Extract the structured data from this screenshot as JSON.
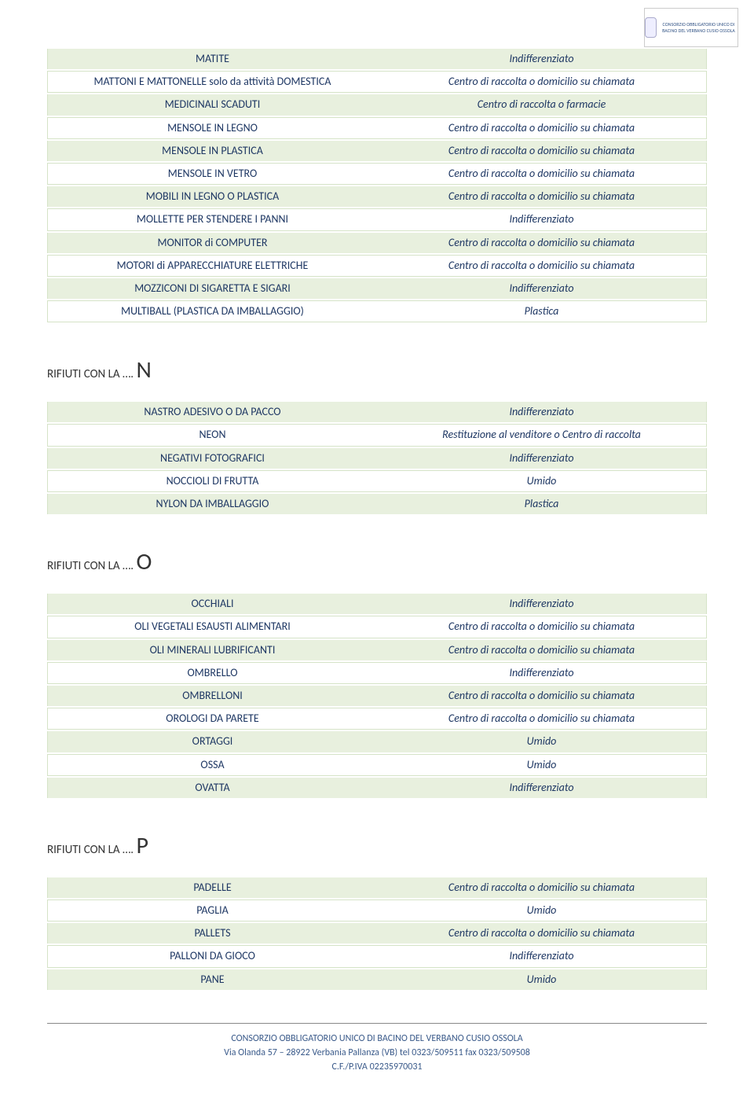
{
  "colors": {
    "row_even_bg": "#e8f0de",
    "row_odd_bg": "#ffffff",
    "row_border": "#d5e3c7",
    "item_text": "#1f3864",
    "disp_text": "#1f3864",
    "heading_text": "#333333",
    "footer_text": "#3a5a8a"
  },
  "logo": {
    "text": "CONSORZIO OBBLIGATORIO UNICO DI BACINO DEL VERBANO CUSIO OSSOLA"
  },
  "tables": {
    "m": [
      {
        "item": "MATITE",
        "disp": "Indifferenziato"
      },
      {
        "item": "MATTONI E MATTONELLE solo da attività DOMESTICA",
        "disp": "Centro di raccolta o domicilio su chiamata"
      },
      {
        "item": "MEDICINALI SCADUTI",
        "disp": "Centro di raccolta o farmacie"
      },
      {
        "item": "MENSOLE IN LEGNO",
        "disp": "Centro di raccolta o domicilio su chiamata"
      },
      {
        "item": "MENSOLE IN PLASTICA",
        "disp": "Centro di raccolta o domicilio su chiamata"
      },
      {
        "item": "MENSOLE IN VETRO",
        "disp": "Centro di raccolta o domicilio su chiamata"
      },
      {
        "item": "MOBILI IN LEGNO O PLASTICA",
        "disp": "Centro di raccolta o domicilio su chiamata"
      },
      {
        "item": "MOLLETTE PER STENDERE I PANNI",
        "disp": "Indifferenziato"
      },
      {
        "item": "MONITOR di COMPUTER",
        "disp": "Centro di raccolta o domicilio su chiamata"
      },
      {
        "item": "MOTORI di APPARECCHIATURE ELETTRICHE",
        "disp": "Centro di raccolta o domicilio su chiamata"
      },
      {
        "item": "MOZZICONI DI SIGARETTA E SIGARI",
        "disp": "Indifferenziato"
      },
      {
        "item": "MULTIBALL (PLASTICA DA IMBALLAGGIO)",
        "disp": "Plastica"
      }
    ],
    "n": [
      {
        "item": "NASTRO ADESIVO O DA PACCO",
        "disp": "Indifferenziato"
      },
      {
        "item": "NEON",
        "disp": "Restituzione al venditore o Centro di raccolta"
      },
      {
        "item": "NEGATIVI FOTOGRAFICI",
        "disp": "Indifferenziato"
      },
      {
        "item": "NOCCIOLI DI FRUTTA",
        "disp": "Umido"
      },
      {
        "item": "NYLON DA IMBALLAGGIO",
        "disp": "Plastica"
      }
    ],
    "o": [
      {
        "item": "OCCHIALI",
        "disp": "Indifferenziato"
      },
      {
        "item": "OLI VEGETALI ESAUSTI ALIMENTARI",
        "disp": "Centro di raccolta o domicilio su chiamata"
      },
      {
        "item": "OLI MINERALI LUBRIFICANTI",
        "disp": "Centro di raccolta o domicilio su chiamata"
      },
      {
        "item": "OMBRELLO",
        "disp": "Indifferenziato"
      },
      {
        "item": "OMBRELLONI",
        "disp": "Centro di raccolta o domicilio su chiamata"
      },
      {
        "item": "OROLOGI DA PARETE",
        "disp": "Centro di raccolta o domicilio su chiamata"
      },
      {
        "item": "ORTAGGI",
        "disp": "Umido"
      },
      {
        "item": "OSSA",
        "disp": "Umido"
      },
      {
        "item": "OVATTA",
        "disp": "Indifferenziato"
      }
    ],
    "p": [
      {
        "item": "PADELLE",
        "disp": "Centro di raccolta o domicilio su chiamata"
      },
      {
        "item": "PAGLIA",
        "disp": "Umido"
      },
      {
        "item": "PALLETS",
        "disp": "Centro di raccolta o domicilio su chiamata"
      },
      {
        "item": "PALLONI DA GIOCO",
        "disp": "Indifferenziato"
      },
      {
        "item": "PANE",
        "disp": "Umido"
      }
    ]
  },
  "headings": {
    "n": {
      "prefix": "RIFIUTI CON LA …. ",
      "letter": "N"
    },
    "o": {
      "prefix": "RIFIUTI CON LA …. ",
      "letter": "O"
    },
    "p": {
      "prefix": "RIFIUTI CON LA …. ",
      "letter": "P"
    }
  },
  "footer": {
    "line1": "CONSORZIO OBBLIGATORIO UNICO DI BACINO DEL VERBANO CUSIO OSSOLA",
    "line2": "Via Olanda 57 – 28922 Verbania Pallanza (VB) tel 0323/509511 fax 0323/509508",
    "line3": "C.F./P.IVA 02235970031"
  }
}
